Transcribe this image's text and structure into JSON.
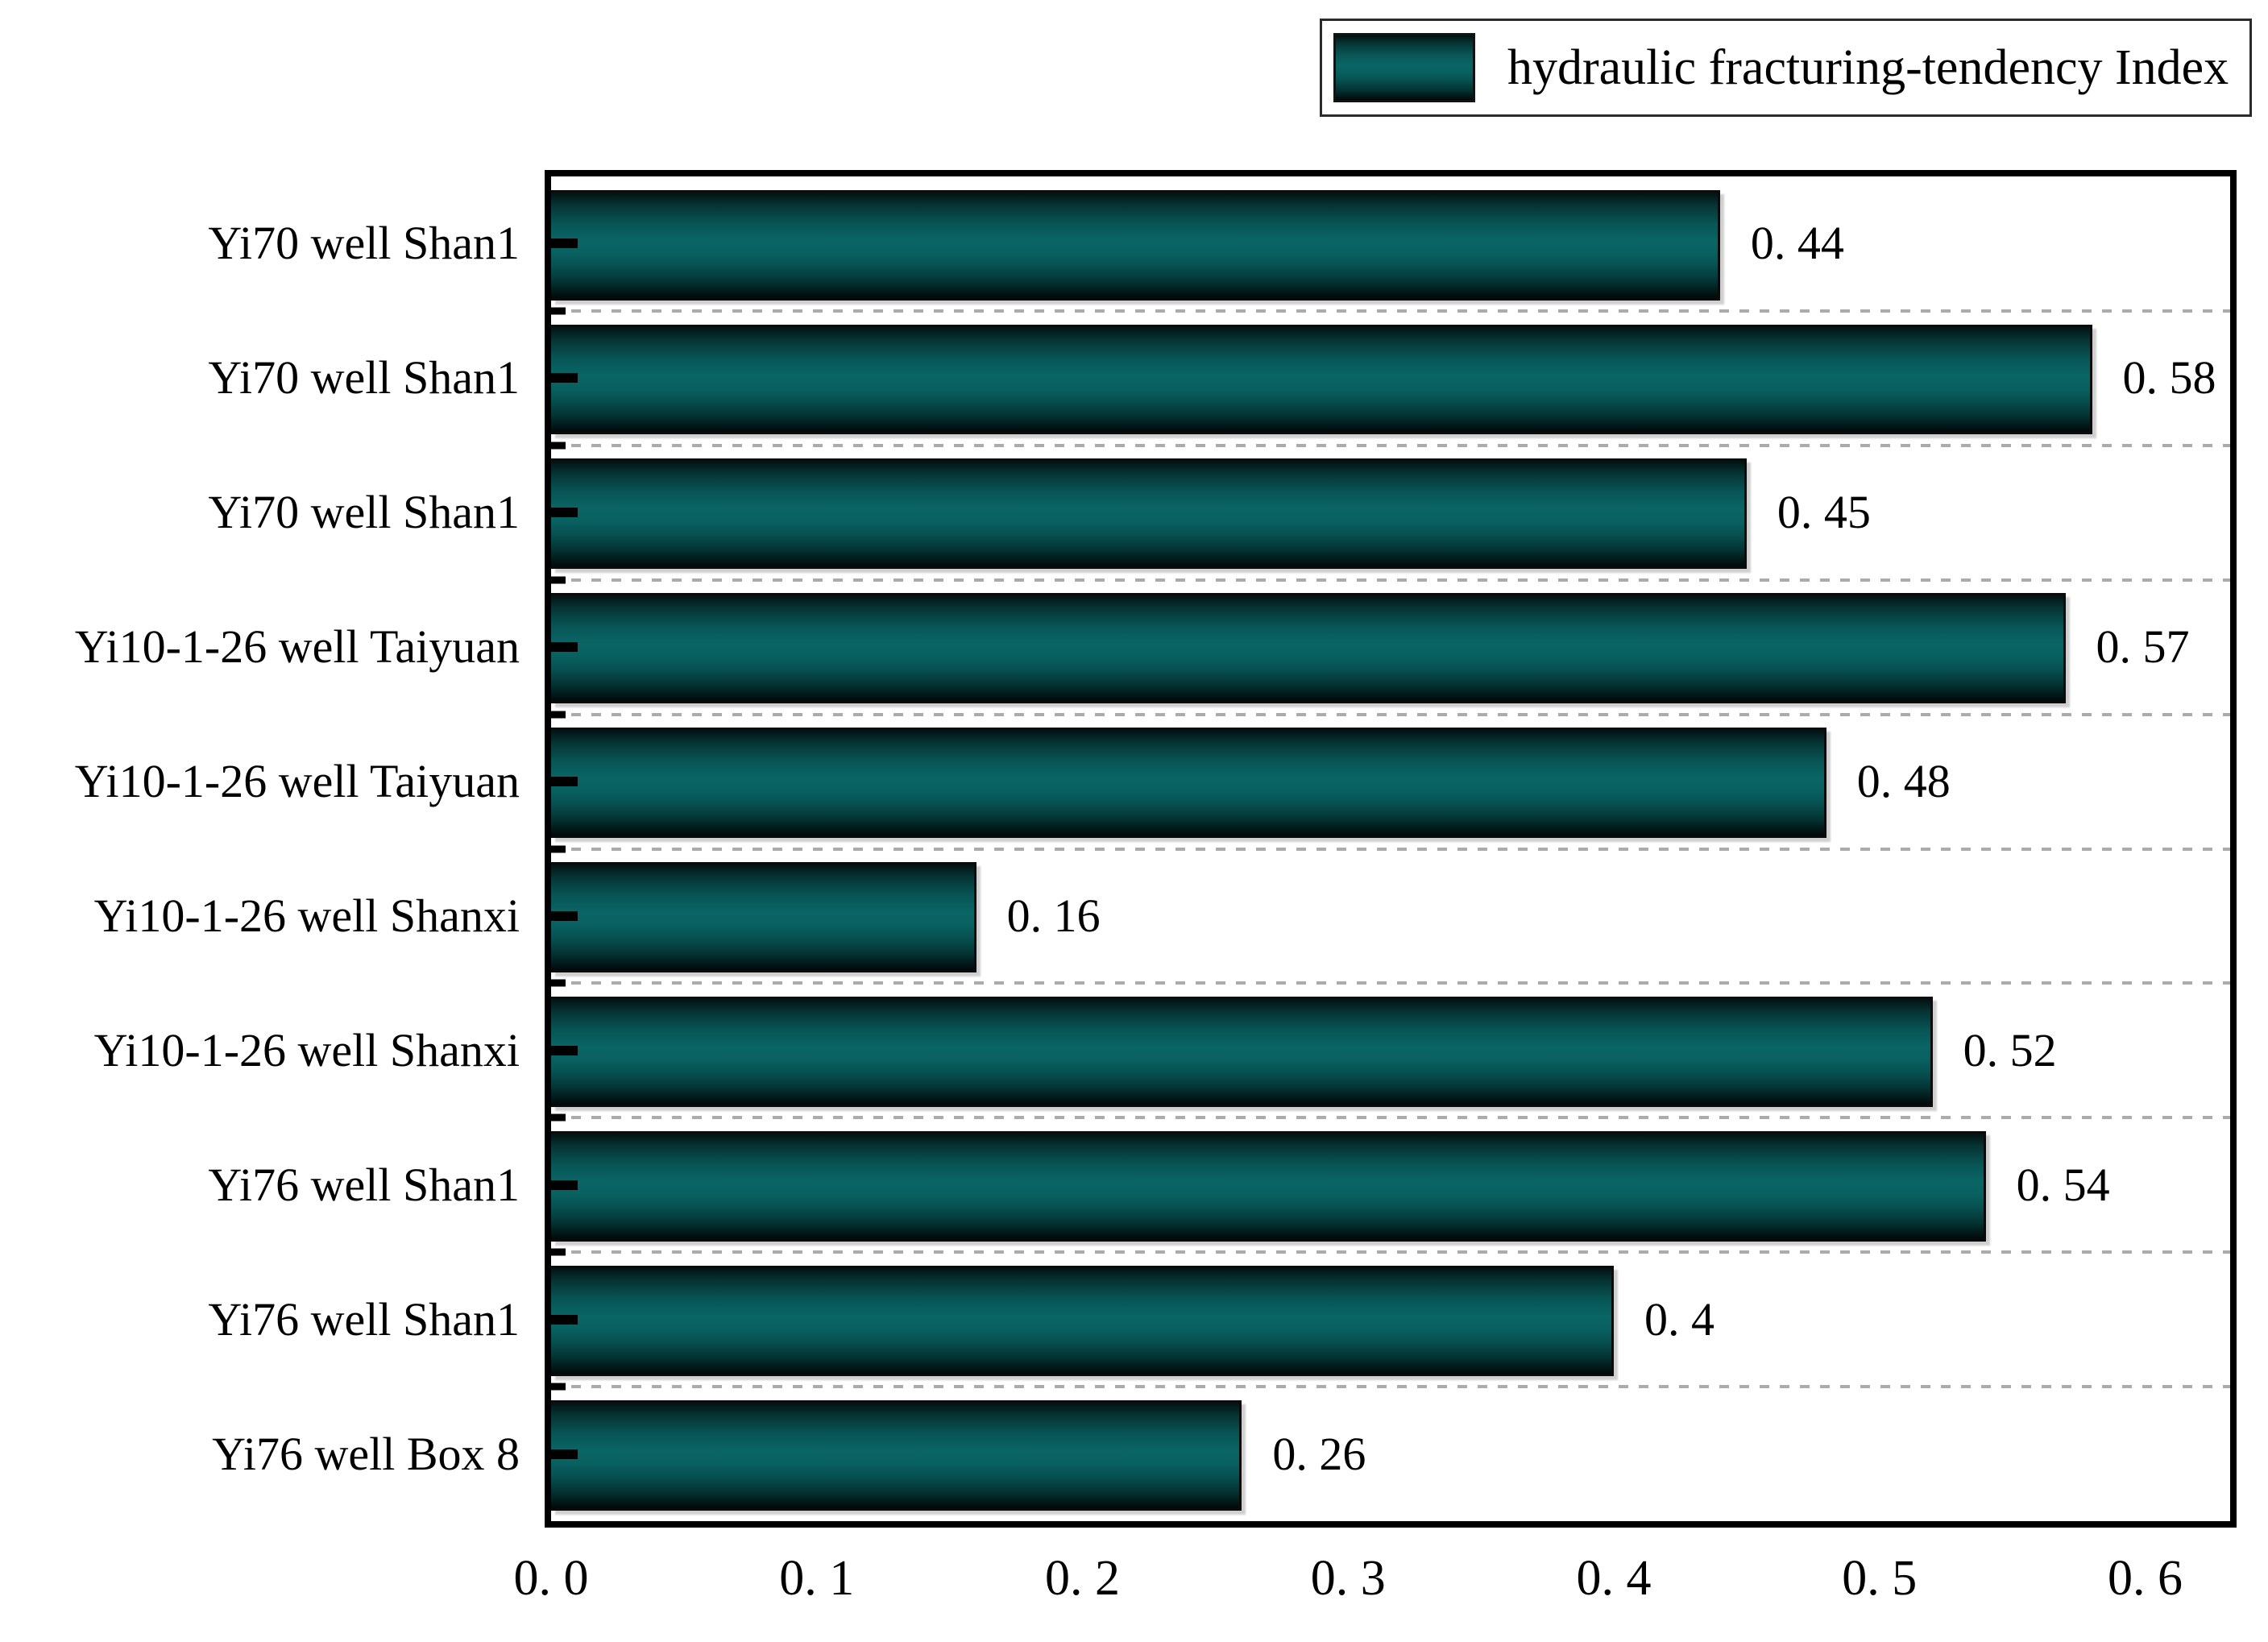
{
  "legend": {
    "label": "hydraulic fracturing-tendency Index",
    "swatch_peak_color": "#0a6565",
    "swatch_dark_color": "#041212",
    "position": "top-right"
  },
  "chart_data": {
    "type": "bar",
    "orientation": "horizontal",
    "title": "",
    "xlabel": "",
    "ylabel": "",
    "series_name": "hydraulic fracturing-tendency Index",
    "categories": [
      "Yi70 well Shan1",
      "Yi70 well Shan1",
      "Yi70 well Shan1",
      "Yi10-1-26 well Taiyuan",
      "Yi10-1-26 well Taiyuan",
      "Yi10-1-26 well Shanxi",
      "Yi10-1-26 well Shanxi",
      "Yi76 well Shan1",
      "Yi76 well Shan1",
      "Yi76 well Box 8"
    ],
    "values": [
      0.44,
      0.58,
      0.45,
      0.57,
      0.48,
      0.16,
      0.52,
      0.54,
      0.4,
      0.26
    ],
    "value_labels": [
      "0. 44",
      "0. 58",
      "0. 45",
      "0. 57",
      "0. 48",
      "0. 16",
      "0. 52",
      "0. 54",
      "0. 4",
      "0. 26"
    ],
    "xlim": [
      0,
      0.632
    ],
    "x_ticks": {
      "values": [
        0.0,
        0.1,
        0.2,
        0.3,
        0.4,
        0.5,
        0.6
      ],
      "labels": [
        "0. 0",
        "0. 1",
        "0. 2",
        "0. 3",
        "0. 4",
        "0. 5",
        "0. 6"
      ]
    },
    "bar_color": "#0a6565",
    "bar_gradient": [
      "#041212",
      "#0a6565",
      "#010909"
    ],
    "grid": "dashed horizontal lines between bars",
    "gridline_color": "#ababab",
    "legend_position": "top-right"
  }
}
